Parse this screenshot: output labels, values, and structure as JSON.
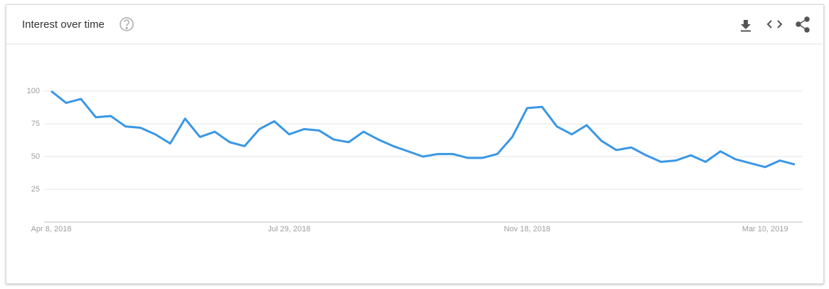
{
  "chart_data": {
    "type": "line",
    "title": "Interest over time",
    "categories": [
      "Apr 8, 2018",
      null,
      null,
      null,
      null,
      null,
      null,
      null,
      null,
      null,
      null,
      null,
      null,
      null,
      null,
      null,
      "Jul 29, 2018",
      null,
      null,
      null,
      null,
      null,
      null,
      null,
      null,
      null,
      null,
      null,
      null,
      null,
      null,
      null,
      "Nov 18, 2018",
      null,
      null,
      null,
      null,
      null,
      null,
      null,
      null,
      null,
      null,
      null,
      null,
      null,
      null,
      null,
      "Mar 10, 2019",
      null,
      null
    ],
    "values": [
      100,
      91,
      94,
      80,
      81,
      73,
      72,
      67,
      60,
      79,
      65,
      69,
      61,
      58,
      71,
      77,
      67,
      71,
      70,
      63,
      61,
      69,
      63,
      58,
      54,
      50,
      52,
      52,
      49,
      49,
      52,
      65,
      87,
      88,
      73,
      67,
      74,
      62,
      55,
      57,
      51,
      46,
      47,
      51,
      46,
      54,
      48,
      45,
      42,
      47,
      44
    ],
    "color": "#3a97e6",
    "ylim": [
      0,
      100
    ],
    "yticks": [
      25,
      50,
      75,
      100
    ],
    "grid": true
  }
}
